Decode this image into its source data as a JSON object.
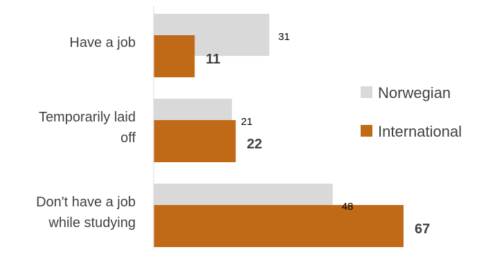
{
  "chart_data": {
    "type": "bar",
    "orientation": "horizontal",
    "categories": [
      [
        "Have a job"
      ],
      [
        "Temporarily laid",
        "off"
      ],
      [
        "Don't have a job",
        "while studying"
      ]
    ],
    "series": [
      {
        "name": "Norwegian",
        "values": [
          31,
          21,
          48
        ],
        "color": "#d9d9d9"
      },
      {
        "name": "International",
        "values": [
          11,
          22,
          67
        ],
        "color": "#c06a18"
      }
    ],
    "xlim": [
      0,
      70
    ],
    "legend_position": "right",
    "grid": false,
    "axis_color": "#d9d9d9"
  }
}
